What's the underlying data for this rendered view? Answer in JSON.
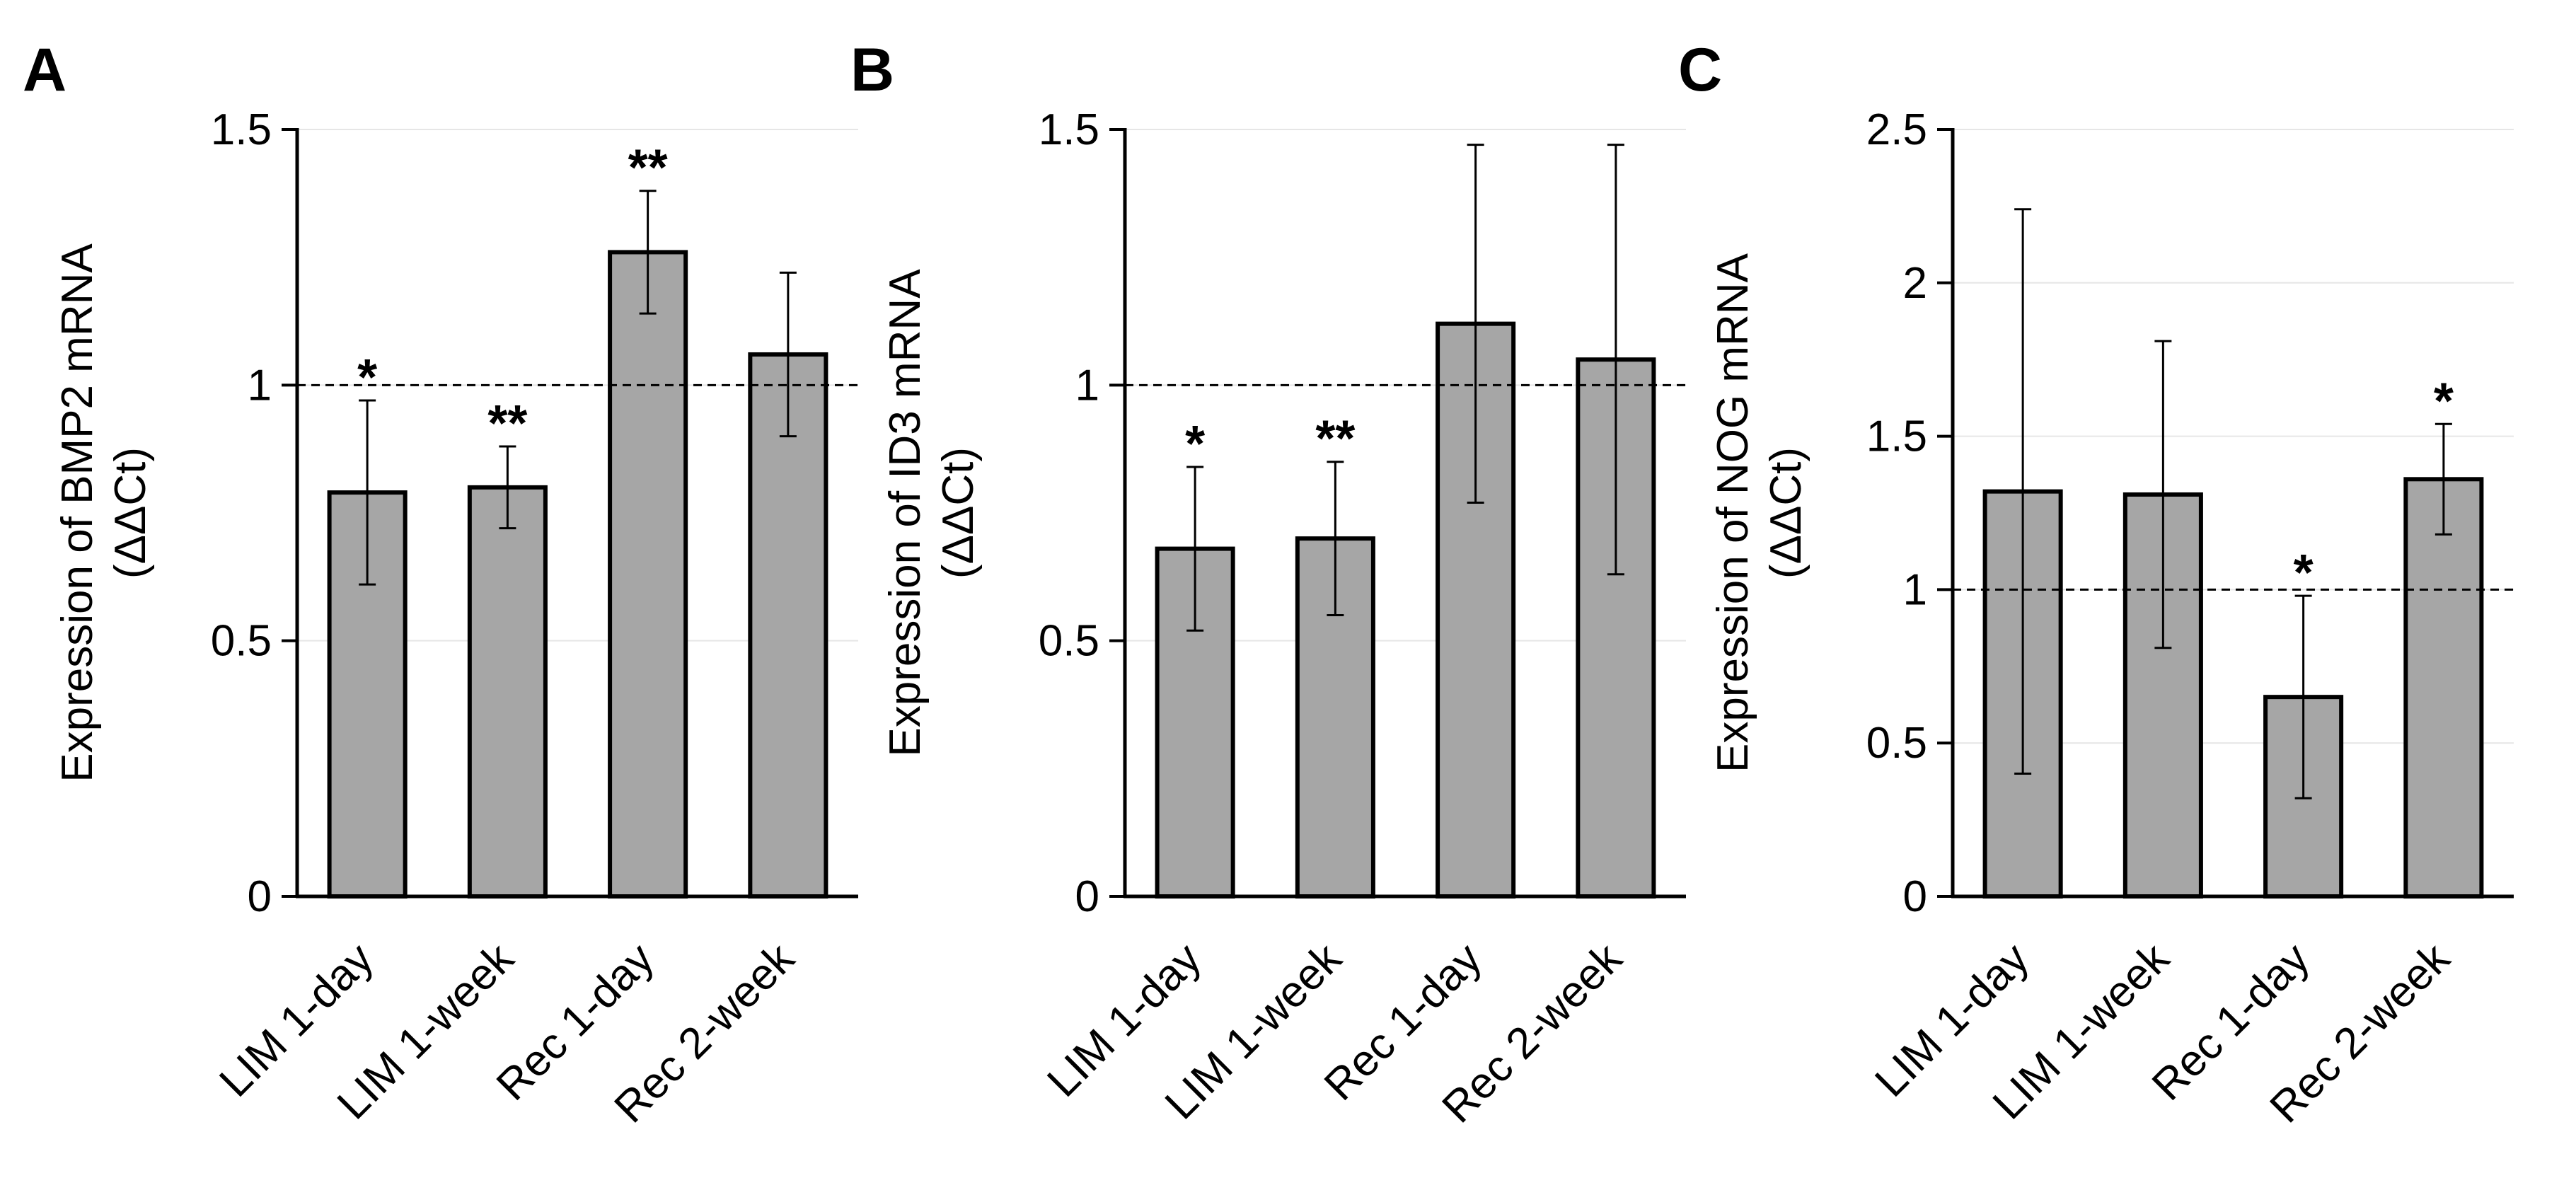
{
  "figure": {
    "type": "multi-panel bar chart",
    "colors": {
      "bar_fill": "#a6a6a6",
      "bar_stroke": "#000000",
      "axis": "#000000",
      "gridline": "#e6e6e6",
      "reference_line": "#000000"
    }
  },
  "chart_data": [
    {
      "type": "bar",
      "panel": "A",
      "ylabel_line1": "Expression of BMP2 mRNA",
      "ylabel_line2": "(ΔΔCt)",
      "ylim": [
        0,
        1.5
      ],
      "yticks": [
        0,
        0.5,
        1,
        1.5
      ],
      "ytick_labels": [
        "0",
        "0.5",
        "1",
        "1.5"
      ],
      "reference_line": 1,
      "categories": [
        "LIM 1-day",
        "LIM 1-week",
        "Rec 1-day",
        "Rec 2-week"
      ],
      "values": [
        0.79,
        0.8,
        1.26,
        1.06
      ],
      "error": [
        0.18,
        0.08,
        0.12,
        0.16
      ],
      "significance": [
        "*",
        "**",
        "**",
        ""
      ]
    },
    {
      "type": "bar",
      "panel": "B",
      "ylabel_line1": "Expression of ID3 mRNA",
      "ylabel_line2": "(ΔΔCt)",
      "ylim": [
        0,
        1.5
      ],
      "yticks": [
        0,
        0.5,
        1,
        1.5
      ],
      "ytick_labels": [
        "0",
        "0.5",
        "1",
        "1.5"
      ],
      "reference_line": 1,
      "categories": [
        "LIM 1-day",
        "LIM 1-week",
        "Rec 1-day",
        "Rec 2-week"
      ],
      "values": [
        0.68,
        0.7,
        1.12,
        1.05
      ],
      "error": [
        0.16,
        0.15,
        0.35,
        0.42
      ],
      "significance": [
        "*",
        "**",
        "",
        ""
      ]
    },
    {
      "type": "bar",
      "panel": "C",
      "ylabel_line1": "Expression of NOG mRNA",
      "ylabel_line2": "(ΔΔCt)",
      "ylim": [
        0,
        2.5
      ],
      "yticks": [
        0,
        0.5,
        1,
        1.5,
        2,
        2.5
      ],
      "ytick_labels": [
        "0",
        "0.5",
        "1",
        "1.5",
        "2",
        "2.5"
      ],
      "reference_line": 1,
      "categories": [
        "LIM 1-day",
        "LIM 1-week",
        "Rec 1-day",
        "Rec 2-week"
      ],
      "values": [
        1.32,
        1.31,
        0.65,
        1.36
      ],
      "error": [
        0.92,
        0.5,
        0.33,
        0.18
      ],
      "significance": [
        "",
        "",
        "*",
        "*"
      ]
    }
  ]
}
